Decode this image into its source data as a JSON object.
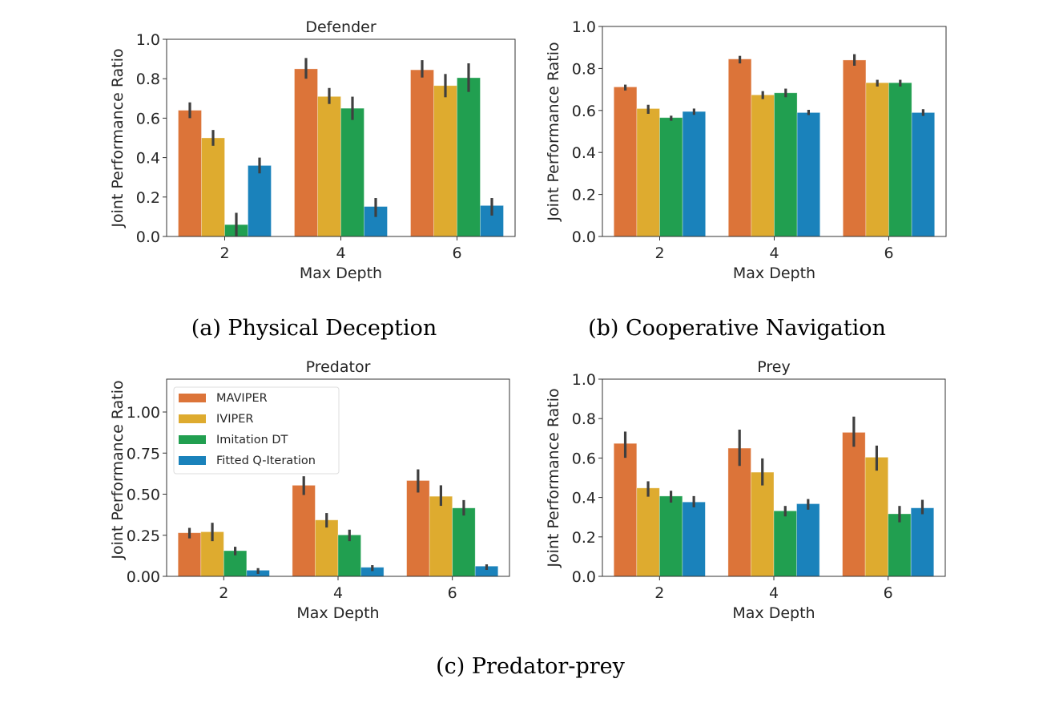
{
  "captions": {
    "a": "(a) Physical Deception",
    "b": "(b) Cooperative Navigation",
    "c": "(c) Predator-prey"
  },
  "chart_data": [
    {
      "type": "bar",
      "title": "Defender",
      "xlabel": "Max Depth",
      "ylabel": "Joint Performance Ratio",
      "categories": [
        "2",
        "4",
        "6"
      ],
      "ylim": [
        0,
        1.0
      ],
      "yticks": [
        "0.0",
        "0.2",
        "0.4",
        "0.6",
        "0.8",
        "1.0"
      ],
      "ytick_values": [
        0,
        0.2,
        0.4,
        0.6,
        0.8,
        1.0
      ],
      "grid": false,
      "legend": null,
      "series": [
        {
          "name": "MAVIPER",
          "color": "#dc7439",
          "values": [
            0.64,
            0.85,
            0.845
          ],
          "ci": [
            [
              0.6,
              0.68
            ],
            [
              0.8,
              0.905
            ],
            [
              0.806,
              0.894
            ]
          ]
        },
        {
          "name": "IVIPER",
          "color": "#deab2f",
          "values": [
            0.5,
            0.71,
            0.765
          ],
          "ci": [
            [
              0.46,
              0.54
            ],
            [
              0.672,
              0.753
            ],
            [
              0.706,
              0.824
            ]
          ]
        },
        {
          "name": "Imitation DT",
          "color": "#219f50",
          "values": [
            0.06,
            0.65,
            0.805
          ],
          "ci": [
            [
              0.0,
              0.12
            ],
            [
              0.591,
              0.709
            ],
            [
              0.733,
              0.878
            ]
          ]
        },
        {
          "name": "Fitted Q-Iteration",
          "color": "#1a82bb",
          "values": [
            0.36,
            0.152,
            0.157
          ],
          "ci": [
            [
              0.32,
              0.4
            ],
            [
              0.099,
              0.195
            ],
            [
              0.106,
              0.195
            ]
          ]
        }
      ]
    },
    {
      "type": "bar",
      "title": "",
      "xlabel": "Max Depth",
      "ylabel": "Joint Performance Ratio",
      "categories": [
        "2",
        "4",
        "6"
      ],
      "ylim": [
        0,
        1.0
      ],
      "yticks": [
        "0.0",
        "0.2",
        "0.4",
        "0.6",
        "0.8",
        "1.0"
      ],
      "ytick_values": [
        0,
        0.2,
        0.4,
        0.6,
        0.8,
        1.0
      ],
      "grid": false,
      "legend": null,
      "series": [
        {
          "name": "MAVIPER",
          "color": "#dc7439",
          "values": [
            0.712,
            0.845,
            0.84
          ],
          "ci": [
            [
              0.695,
              0.723
            ],
            [
              0.824,
              0.86
            ],
            [
              0.813,
              0.868
            ]
          ]
        },
        {
          "name": "IVIPER",
          "color": "#deab2f",
          "values": [
            0.609,
            0.674,
            0.732
          ],
          "ci": [
            [
              0.584,
              0.627
            ],
            [
              0.654,
              0.692
            ],
            [
              0.714,
              0.746
            ]
          ]
        },
        {
          "name": "Imitation DT",
          "color": "#219f50",
          "values": [
            0.566,
            0.684,
            0.732
          ],
          "ci": [
            [
              0.551,
              0.575
            ],
            [
              0.663,
              0.704
            ],
            [
              0.714,
              0.746
            ]
          ]
        },
        {
          "name": "Fitted Q-Iteration",
          "color": "#1a82bb",
          "values": [
            0.595,
            0.59,
            0.59
          ],
          "ci": [
            [
              0.579,
              0.609
            ],
            [
              0.578,
              0.603
            ],
            [
              0.574,
              0.606
            ]
          ]
        }
      ]
    },
    {
      "type": "bar",
      "title": "Predator",
      "xlabel": "Max Depth",
      "ylabel": "Joint Performance Ratio",
      "categories": [
        "2",
        "4",
        "6"
      ],
      "ylim": [
        0,
        1.2
      ],
      "yticks": [
        "0.00",
        "0.25",
        "0.50",
        "0.75",
        "1.00"
      ],
      "ytick_values": [
        0,
        0.25,
        0.5,
        0.75,
        1.0
      ],
      "grid": false,
      "legend": "upper-left",
      "series": [
        {
          "name": "MAVIPER",
          "color": "#dc7439",
          "values": [
            0.265,
            0.554,
            0.583
          ],
          "ci": [
            [
              0.231,
              0.295
            ],
            [
              0.495,
              0.609
            ],
            [
              0.51,
              0.651
            ]
          ]
        },
        {
          "name": "IVIPER",
          "color": "#deab2f",
          "values": [
            0.271,
            0.343,
            0.487
          ],
          "ci": [
            [
              0.214,
              0.326
            ],
            [
              0.297,
              0.385
            ],
            [
              0.429,
              0.554
            ]
          ]
        },
        {
          "name": "Imitation DT",
          "color": "#219f50",
          "values": [
            0.156,
            0.252,
            0.416
          ],
          "ci": [
            [
              0.128,
              0.18
            ],
            [
              0.214,
              0.284
            ],
            [
              0.37,
              0.464
            ]
          ]
        },
        {
          "name": "Fitted Q-Iteration",
          "color": "#1a82bb",
          "values": [
            0.037,
            0.055,
            0.062
          ],
          "ci": [
            [
              0.015,
              0.05
            ],
            [
              0.032,
              0.068
            ],
            [
              0.039,
              0.073
            ]
          ]
        }
      ]
    },
    {
      "type": "bar",
      "title": "Prey",
      "xlabel": "Max Depth",
      "ylabel": "Joint Performance Ratio",
      "categories": [
        "2",
        "4",
        "6"
      ],
      "ylim": [
        0,
        1.0
      ],
      "yticks": [
        "0.0",
        "0.2",
        "0.4",
        "0.6",
        "0.8",
        "1.0"
      ],
      "ytick_values": [
        0,
        0.2,
        0.4,
        0.6,
        0.8,
        1.0
      ],
      "grid": false,
      "legend": null,
      "series": [
        {
          "name": "MAVIPER",
          "color": "#dc7439",
          "values": [
            0.674,
            0.65,
            0.73
          ],
          "ci": [
            [
              0.601,
              0.734
            ],
            [
              0.56,
              0.744
            ],
            [
              0.657,
              0.81
            ]
          ]
        },
        {
          "name": "IVIPER",
          "color": "#deab2f",
          "values": [
            0.448,
            0.528,
            0.604
          ],
          "ci": [
            [
              0.404,
              0.482
            ],
            [
              0.461,
              0.598
            ],
            [
              0.536,
              0.663
            ]
          ]
        },
        {
          "name": "Imitation DT",
          "color": "#219f50",
          "values": [
            0.407,
            0.332,
            0.317
          ],
          "ci": [
            [
              0.374,
              0.434
            ],
            [
              0.304,
              0.357
            ],
            [
              0.274,
              0.357
            ]
          ]
        },
        {
          "name": "Fitted Q-Iteration",
          "color": "#1a82bb",
          "values": [
            0.377,
            0.368,
            0.347
          ],
          "ci": [
            [
              0.35,
              0.407
            ],
            [
              0.338,
              0.392
            ],
            [
              0.315,
              0.388
            ]
          ]
        }
      ]
    }
  ]
}
